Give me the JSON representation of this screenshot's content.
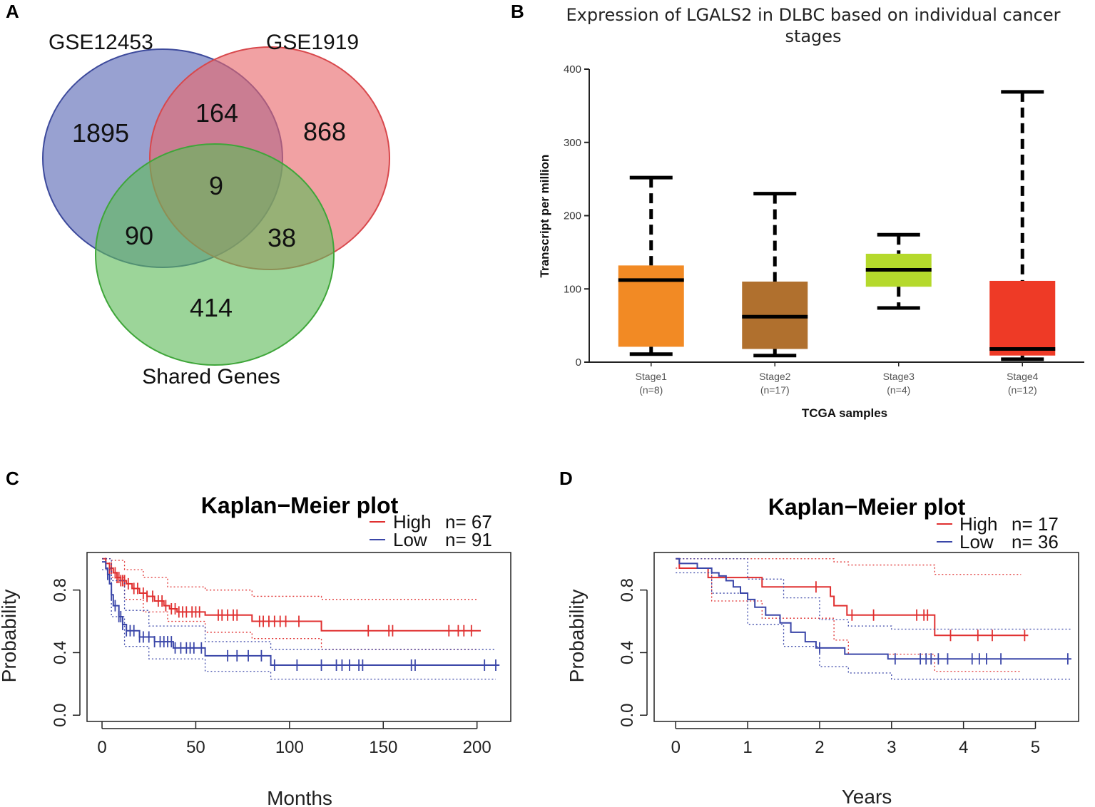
{
  "panels": {
    "A": {
      "letter": "A"
    },
    "B": {
      "letter": "B"
    },
    "C": {
      "letter": "C"
    },
    "D": {
      "letter": "D"
    }
  },
  "chart_data": [
    {
      "panel": "A",
      "type": "venn",
      "sets": [
        {
          "name": "GSE12453",
          "color": "#5868b4"
        },
        {
          "name": "GSE1919",
          "color": "#e8686a"
        },
        {
          "name": "Shared Genes",
          "color": "#5fbc5a"
        }
      ],
      "regions": {
        "only_gse12453": 1895,
        "gse12453_gse1919": 164,
        "only_gse1919": 868,
        "all_three": 9,
        "gse12453_shared": 90,
        "gse1919_shared": 38,
        "only_shared": 414
      }
    },
    {
      "panel": "B",
      "type": "box",
      "title_lines": [
        "Expression of LGALS2 in DLBC based on individual cancer",
        "stages"
      ],
      "xlabel": "TCGA samples",
      "ylabel": "Transcript per million",
      "ylim": [
        0,
        400
      ],
      "yticks": [
        "0",
        "100",
        "200",
        "300",
        "400"
      ],
      "groups": [
        {
          "label": "Stage1",
          "n_label": "(n=8)",
          "color": "#f28a24",
          "min": 11,
          "q1": 21,
          "median": 112,
          "q3": 132,
          "max": 252
        },
        {
          "label": "Stage2",
          "n_label": "(n=17)",
          "color": "#b0702e",
          "min": 9,
          "q1": 18,
          "median": 62,
          "q3": 110,
          "max": 230
        },
        {
          "label": "Stage3",
          "n_label": "(n=4)",
          "color": "#b5d92c",
          "min": 74,
          "q1": 103,
          "median": 126,
          "q3": 148,
          "max": 174
        },
        {
          "label": "Stage4",
          "n_label": "(n=12)",
          "color": "#ee3a26",
          "min": 4,
          "q1": 9,
          "median": 18,
          "q3": 111,
          "max": 369
        }
      ]
    },
    {
      "panel": "C",
      "type": "line",
      "subtype": "kaplan-meier",
      "title": "Kaplan−Meier plot",
      "xlabel": "Months",
      "ylabel": "Probability",
      "xlim": [
        -8,
        218
      ],
      "ylim": [
        -0.04,
        1.04
      ],
      "xticks": [
        "0",
        "50",
        "100",
        "150",
        "200"
      ],
      "yticks": [
        "0.0",
        "0.4",
        "0.8"
      ],
      "legend": [
        {
          "name": "High",
          "n_label": "n= 67",
          "color": "#e03030"
        },
        {
          "name": "Low",
          "n_label": "n= 91",
          "color": "#3a46a8"
        }
      ],
      "series": [
        {
          "name": "High",
          "color": "#e03030",
          "steps": [
            [
              0,
              1.0
            ],
            [
              2,
              0.97
            ],
            [
              4,
              0.94
            ],
            [
              6,
              0.91
            ],
            [
              8,
              0.88
            ],
            [
              10,
              0.86
            ],
            [
              13,
              0.84
            ],
            [
              16,
              0.81
            ],
            [
              20,
              0.78
            ],
            [
              24,
              0.76
            ],
            [
              28,
              0.73
            ],
            [
              33,
              0.7
            ],
            [
              36,
              0.68
            ],
            [
              40,
              0.66
            ],
            [
              55,
              0.64
            ],
            [
              80,
              0.6
            ],
            [
              117,
              0.54
            ],
            [
              202,
              0.54
            ]
          ],
          "censor": [
            2,
            4,
            5,
            7,
            8,
            9,
            10,
            11,
            12,
            14,
            17,
            19,
            22,
            24,
            27,
            30,
            32,
            34,
            37,
            39,
            41,
            43,
            45,
            48,
            50,
            52,
            62,
            64,
            67,
            70,
            72,
            84,
            86,
            89,
            92,
            95,
            98,
            105,
            142,
            153,
            155,
            185,
            190,
            193,
            197
          ],
          "ci_upper": [
            [
              0,
              1.0
            ],
            [
              5,
              0.99
            ],
            [
              12,
              0.93
            ],
            [
              22,
              0.88
            ],
            [
              35,
              0.82
            ],
            [
              55,
              0.8
            ],
            [
              80,
              0.76
            ],
            [
              117,
              0.74
            ],
            [
              200,
              0.74
            ]
          ],
          "ci_lower": [
            [
              0,
              1.0
            ],
            [
              5,
              0.88
            ],
            [
              12,
              0.74
            ],
            [
              22,
              0.66
            ],
            [
              35,
              0.6
            ],
            [
              55,
              0.53
            ],
            [
              80,
              0.49
            ],
            [
              117,
              0.42
            ],
            [
              200,
              0.42
            ]
          ]
        },
        {
          "name": "Low",
          "color": "#3a46a8",
          "steps": [
            [
              0,
              0.98
            ],
            [
              2,
              0.94
            ],
            [
              3,
              0.9
            ],
            [
              4,
              0.84
            ],
            [
              5,
              0.77
            ],
            [
              6,
              0.7
            ],
            [
              9,
              0.63
            ],
            [
              11,
              0.58
            ],
            [
              13,
              0.54
            ],
            [
              20,
              0.5
            ],
            [
              28,
              0.47
            ],
            [
              38,
              0.43
            ],
            [
              55,
              0.38
            ],
            [
              90,
              0.32
            ],
            [
              212,
              0.32
            ]
          ],
          "censor": [
            3,
            5,
            7,
            9,
            10,
            11,
            13,
            15,
            17,
            20,
            22,
            25,
            28,
            31,
            33,
            35,
            37,
            39,
            42,
            45,
            47,
            49,
            53,
            67,
            72,
            78,
            85,
            92,
            104,
            117,
            125,
            128,
            132,
            137,
            139,
            165,
            167,
            204,
            210
          ],
          "ci_upper": [
            [
              0,
              1.0
            ],
            [
              5,
              0.86
            ],
            [
              12,
              0.67
            ],
            [
              25,
              0.57
            ],
            [
              55,
              0.47
            ],
            [
              90,
              0.42
            ],
            [
              210,
              0.42
            ]
          ],
          "ci_lower": [
            [
              0,
              0.93
            ],
            [
              5,
              0.63
            ],
            [
              12,
              0.44
            ],
            [
              25,
              0.36
            ],
            [
              55,
              0.28
            ],
            [
              90,
              0.23
            ],
            [
              210,
              0.23
            ]
          ]
        }
      ]
    },
    {
      "panel": "D",
      "type": "line",
      "subtype": "kaplan-meier",
      "title": "Kaplan−Meier plot",
      "xlabel": "Years",
      "ylabel": "Probability",
      "xlim": [
        -0.3,
        5.6
      ],
      "ylim": [
        -0.04,
        1.04
      ],
      "xticks": [
        "0",
        "1",
        "2",
        "3",
        "4",
        "5"
      ],
      "yticks": [
        "0.0",
        "0.4",
        "0.8"
      ],
      "legend": [
        {
          "name": "High",
          "n_label": "n= 17",
          "color": "#e03030"
        },
        {
          "name": "Low",
          "n_label": "n= 36",
          "color": "#3a46a8"
        }
      ],
      "series": [
        {
          "name": "High",
          "color": "#e03030",
          "steps": [
            [
              0,
              1.0
            ],
            [
              0.05,
              0.94
            ],
            [
              0.45,
              0.88
            ],
            [
              1.2,
              0.82
            ],
            [
              2.15,
              0.76
            ],
            [
              2.2,
              0.7
            ],
            [
              2.38,
              0.64
            ],
            [
              3.6,
              0.51
            ],
            [
              4.9,
              0.51
            ]
          ],
          "censor": [
            1.95,
            2.45,
            2.75,
            3.35,
            3.45,
            3.5,
            3.82,
            4.2,
            4.4,
            4.85
          ],
          "ci_upper": [
            [
              0,
              1.0
            ],
            [
              0.5,
              1.0
            ],
            [
              1.2,
              1.0
            ],
            [
              2.2,
              0.98
            ],
            [
              2.4,
              0.96
            ],
            [
              3.6,
              0.9
            ],
            [
              4.8,
              0.9
            ]
          ],
          "ci_lower": [
            [
              0,
              0.94
            ],
            [
              0.5,
              0.73
            ],
            [
              1.2,
              0.62
            ],
            [
              2.2,
              0.48
            ],
            [
              2.4,
              0.39
            ],
            [
              3.6,
              0.28
            ],
            [
              4.8,
              0.28
            ]
          ]
        },
        {
          "name": "Low",
          "color": "#3a46a8",
          "steps": [
            [
              0,
              1.0
            ],
            [
              0.05,
              0.97
            ],
            [
              0.3,
              0.94
            ],
            [
              0.5,
              0.91
            ],
            [
              0.6,
              0.89
            ],
            [
              0.7,
              0.86
            ],
            [
              0.8,
              0.82
            ],
            [
              0.9,
              0.78
            ],
            [
              1.0,
              0.74
            ],
            [
              1.1,
              0.69
            ],
            [
              1.25,
              0.64
            ],
            [
              1.45,
              0.59
            ],
            [
              1.6,
              0.53
            ],
            [
              1.8,
              0.47
            ],
            [
              1.95,
              0.43
            ],
            [
              2.35,
              0.39
            ],
            [
              2.95,
              0.36
            ],
            [
              5.5,
              0.36
            ]
          ],
          "censor": [
            2.0,
            3.05,
            3.4,
            3.48,
            3.55,
            3.65,
            3.78,
            4.12,
            4.22,
            4.32,
            4.52,
            5.45
          ],
          "ci_upper": [
            [
              0,
              1.0
            ],
            [
              0.5,
              1.0
            ],
            [
              1.0,
              0.87
            ],
            [
              1.5,
              0.75
            ],
            [
              2.0,
              0.61
            ],
            [
              2.4,
              0.57
            ],
            [
              3.0,
              0.55
            ],
            [
              5.5,
              0.55
            ]
          ],
          "ci_lower": [
            [
              0,
              0.91
            ],
            [
              0.5,
              0.78
            ],
            [
              1.0,
              0.58
            ],
            [
              1.5,
              0.44
            ],
            [
              2.0,
              0.31
            ],
            [
              2.4,
              0.27
            ],
            [
              3.0,
              0.23
            ],
            [
              5.5,
              0.23
            ]
          ]
        }
      ]
    }
  ]
}
